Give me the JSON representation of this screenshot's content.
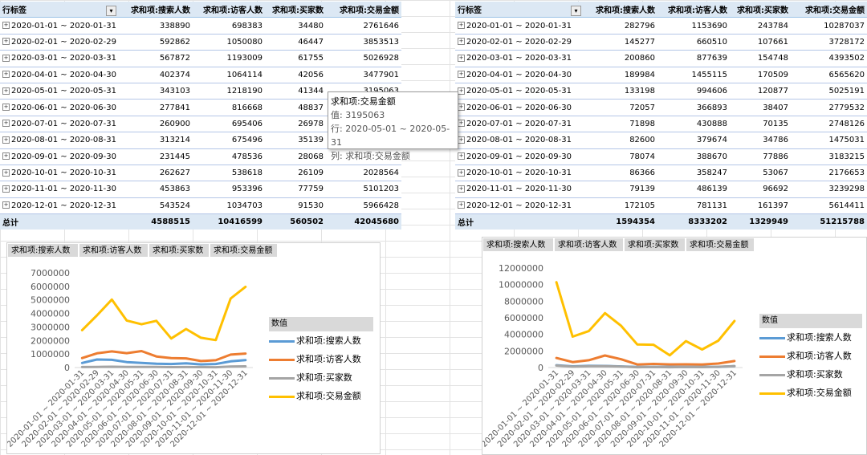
{
  "pivot_left": {
    "headers": [
      "行标签",
      "求和项:搜索人数",
      "求和项:访客人数",
      "求和项:买家数",
      "求和项:交易金额"
    ],
    "rows": [
      [
        "2020-01-01 ~ 2020-01-31",
        "338890",
        "698383",
        "34480",
        "2761646"
      ],
      [
        "2020-02-01 ~ 2020-02-29",
        "592862",
        "1050080",
        "46447",
        "3853513"
      ],
      [
        "2020-03-01 ~ 2020-03-31",
        "567872",
        "1193009",
        "61755",
        "5026928"
      ],
      [
        "2020-04-01 ~ 2020-04-30",
        "402374",
        "1064114",
        "42056",
        "3477901"
      ],
      [
        "2020-05-01 ~ 2020-05-31",
        "343103",
        "1218190",
        "41344",
        "3195063"
      ],
      [
        "2020-06-01 ~ 2020-06-30",
        "277841",
        "816668",
        "48837",
        ""
      ],
      [
        "2020-07-01 ~ 2020-07-31",
        "260900",
        "695406",
        "26978",
        ""
      ],
      [
        "2020-08-01 ~ 2020-08-31",
        "313214",
        "675496",
        "35139",
        ""
      ],
      [
        "2020-09-01 ~ 2020-09-30",
        "231445",
        "478536",
        "28068",
        ""
      ],
      [
        "2020-10-01 ~ 2020-10-31",
        "262627",
        "538618",
        "26109",
        "2028564"
      ],
      [
        "2020-11-01 ~ 2020-11-30",
        "453863",
        "953396",
        "77759",
        "5101203"
      ],
      [
        "2020-12-01 ~ 2020-12-31",
        "543524",
        "1034703",
        "91530",
        "5966428"
      ]
    ],
    "total": [
      "总计",
      "4588515",
      "10416599",
      "560502",
      "42045680"
    ]
  },
  "pivot_right": {
    "headers": [
      "行标签",
      "求和项:搜索人数",
      "求和项:访客人数",
      "求和项:买家数",
      "求和项:交易金额"
    ],
    "rows": [
      [
        "2020-01-01 ~ 2020-01-31",
        "282796",
        "1153690",
        "243784",
        "10287037"
      ],
      [
        "2020-02-01 ~ 2020-02-29",
        "145277",
        "660510",
        "107661",
        "3728172"
      ],
      [
        "2020-03-01 ~ 2020-03-31",
        "200860",
        "877639",
        "154748",
        "4393502"
      ],
      [
        "2020-04-01 ~ 2020-04-30",
        "189984",
        "1455115",
        "170509",
        "6565620"
      ],
      [
        "2020-05-01 ~ 2020-05-31",
        "133198",
        "994606",
        "120877",
        "5025191"
      ],
      [
        "2020-06-01 ~ 2020-06-30",
        "72057",
        "366893",
        "38407",
        "2779532"
      ],
      [
        "2020-07-01 ~ 2020-07-31",
        "71898",
        "430888",
        "70135",
        "2748126"
      ],
      [
        "2020-08-01 ~ 2020-08-31",
        "82600",
        "379674",
        "34786",
        "1475031"
      ],
      [
        "2020-09-01 ~ 2020-09-30",
        "78074",
        "388670",
        "77886",
        "3183215"
      ],
      [
        "2020-10-01 ~ 2020-10-31",
        "86366",
        "358247",
        "53067",
        "2176653"
      ],
      [
        "2020-11-01 ~ 2020-11-30",
        "79139",
        "486139",
        "96692",
        "3239298"
      ],
      [
        "2020-12-01 ~ 2020-12-31",
        "172105",
        "781131",
        "161397",
        "5614411"
      ]
    ],
    "total": [
      "总计",
      "1594354",
      "8333202",
      "1329949",
      "51215788"
    ]
  },
  "tooltip": {
    "title": "求和项:交易金额",
    "value": "值: 3195063",
    "row": "行: 2020-05-01 ~ 2020-05-31",
    "col": "列: 求和项:交易金额"
  },
  "chart_data": [
    {
      "type": "line",
      "field_buttons": [
        "求和项:搜索人数",
        "求和项:访客人数",
        "求和项:买家数",
        "求和项:交易金额"
      ],
      "legend_title": "数值",
      "categories": [
        "2020-01-01 ~ 2020-01-31",
        "2020-02-01 ~ 2020-02-29",
        "2020-03-01 ~ 2020-03-31",
        "2020-04-01 ~ 2020-04-30",
        "2020-05-01 ~ 2020-05-31",
        "2020-06-01 ~ 2020-06-30",
        "2020-07-01 ~ 2020-07-31",
        "2020-08-01 ~ 2020-08-31",
        "2020-09-01 ~ 2020-09-30",
        "2020-10-01 ~ 2020-10-31",
        "2020-11-01 ~ 2020-11-30",
        "2020-12-01 ~ 2020-12-31"
      ],
      "ylim": [
        0,
        7000000
      ],
      "yticks": [
        "0",
        "1000000",
        "2000000",
        "3000000",
        "4000000",
        "5000000",
        "6000000",
        "7000000"
      ],
      "series": [
        {
          "name": "求和项:搜索人数",
          "color": "#5b9bd5",
          "values": [
            338890,
            592862,
            567872,
            402374,
            343103,
            277841,
            260900,
            313214,
            231445,
            262627,
            453863,
            543524
          ]
        },
        {
          "name": "求和项:访客人数",
          "color": "#ed7d31",
          "values": [
            698383,
            1050080,
            1193009,
            1064114,
            1218190,
            816668,
            695406,
            675496,
            478536,
            538618,
            953396,
            1034703
          ]
        },
        {
          "name": "求和项:买家数",
          "color": "#a5a5a5",
          "values": [
            34480,
            46447,
            61755,
            42056,
            41344,
            48837,
            26978,
            35139,
            28068,
            26109,
            77759,
            91530
          ]
        },
        {
          "name": "求和项:交易金额",
          "color": "#ffc000",
          "values": [
            2761646,
            3853513,
            5026928,
            3477901,
            3195063,
            3450000,
            2150000,
            2850000,
            2200000,
            2028564,
            5101203,
            5966428
          ]
        }
      ],
      "legend_position": "right",
      "grid": false
    },
    {
      "type": "line",
      "field_buttons": [
        "求和项:搜索人数",
        "求和项:访客人数",
        "求和项:买家数",
        "求和项:交易金额"
      ],
      "legend_title": "数值",
      "categories": [
        "2020-01-01 ~ 2020-01-31",
        "2020-02-01 ~ 2020-02-29",
        "2020-03-01 ~ 2020-03-31",
        "2020-04-01 ~ 2020-04-30",
        "2020-05-01 ~ 2020-05-31",
        "2020-06-01 ~ 2020-06-30",
        "2020-07-01 ~ 2020-07-31",
        "2020-08-01 ~ 2020-08-31",
        "2020-09-01 ~ 2020-09-30",
        "2020-10-01 ~ 2020-10-31",
        "2020-11-01 ~ 2020-11-30",
        "2020-12-01 ~ 2020-12-31"
      ],
      "ylim": [
        0,
        12000000
      ],
      "yticks": [
        "0",
        "2000000",
        "4000000",
        "6000000",
        "8000000",
        "10000000",
        "12000000"
      ],
      "series": [
        {
          "name": "求和项:搜索人数",
          "color": "#5b9bd5",
          "values": [
            282796,
            145277,
            200860,
            189984,
            133198,
            72057,
            71898,
            82600,
            78074,
            86366,
            79139,
            172105
          ]
        },
        {
          "name": "求和项:访客人数",
          "color": "#ed7d31",
          "values": [
            1153690,
            660510,
            877639,
            1455115,
            994606,
            366893,
            430888,
            379674,
            388670,
            358247,
            486139,
            781131
          ]
        },
        {
          "name": "求和项:买家数",
          "color": "#a5a5a5",
          "values": [
            243784,
            107661,
            154748,
            170509,
            120877,
            38407,
            70135,
            34786,
            77886,
            53067,
            96692,
            161397
          ]
        },
        {
          "name": "求和项:交易金额",
          "color": "#ffc000",
          "values": [
            10287037,
            3728172,
            4393502,
            6565620,
            5025191,
            2779532,
            2748126,
            1475031,
            3183215,
            2176653,
            3239298,
            5614411
          ]
        }
      ],
      "legend_position": "right",
      "grid": false
    }
  ]
}
